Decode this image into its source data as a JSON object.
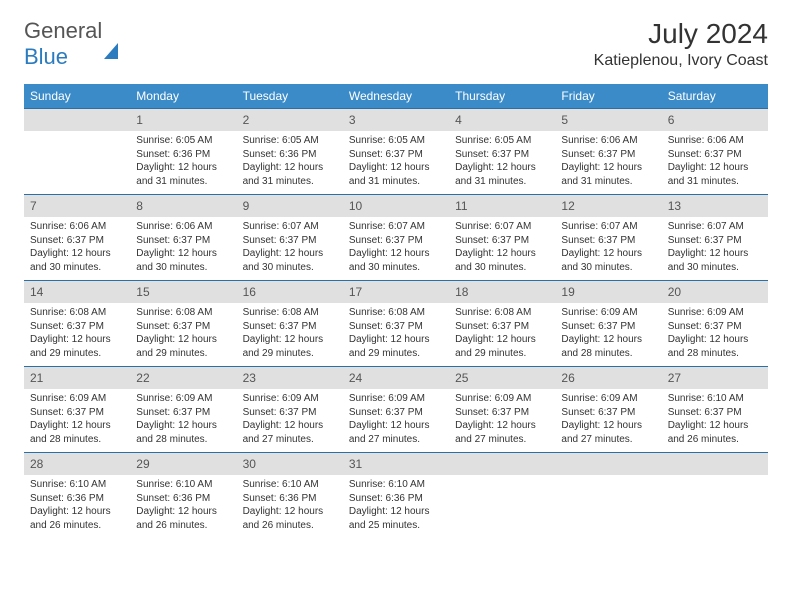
{
  "logo": {
    "text1": "General",
    "text2": "Blue"
  },
  "title": "July 2024",
  "location": "Katieplenou, Ivory Coast",
  "colors": {
    "header_bg": "#3b8bc9",
    "daynum_bg": "#e0e0e0",
    "border": "#2b6fa8",
    "text": "#333333"
  },
  "weekdays": [
    "Sunday",
    "Monday",
    "Tuesday",
    "Wednesday",
    "Thursday",
    "Friday",
    "Saturday"
  ],
  "first_weekday_index": 1,
  "days_in_month": 31,
  "days": {
    "1": {
      "sunrise": "6:05 AM",
      "sunset": "6:36 PM",
      "daylight": "12 hours and 31 minutes."
    },
    "2": {
      "sunrise": "6:05 AM",
      "sunset": "6:36 PM",
      "daylight": "12 hours and 31 minutes."
    },
    "3": {
      "sunrise": "6:05 AM",
      "sunset": "6:37 PM",
      "daylight": "12 hours and 31 minutes."
    },
    "4": {
      "sunrise": "6:05 AM",
      "sunset": "6:37 PM",
      "daylight": "12 hours and 31 minutes."
    },
    "5": {
      "sunrise": "6:06 AM",
      "sunset": "6:37 PM",
      "daylight": "12 hours and 31 minutes."
    },
    "6": {
      "sunrise": "6:06 AM",
      "sunset": "6:37 PM",
      "daylight": "12 hours and 31 minutes."
    },
    "7": {
      "sunrise": "6:06 AM",
      "sunset": "6:37 PM",
      "daylight": "12 hours and 30 minutes."
    },
    "8": {
      "sunrise": "6:06 AM",
      "sunset": "6:37 PM",
      "daylight": "12 hours and 30 minutes."
    },
    "9": {
      "sunrise": "6:07 AM",
      "sunset": "6:37 PM",
      "daylight": "12 hours and 30 minutes."
    },
    "10": {
      "sunrise": "6:07 AM",
      "sunset": "6:37 PM",
      "daylight": "12 hours and 30 minutes."
    },
    "11": {
      "sunrise": "6:07 AM",
      "sunset": "6:37 PM",
      "daylight": "12 hours and 30 minutes."
    },
    "12": {
      "sunrise": "6:07 AM",
      "sunset": "6:37 PM",
      "daylight": "12 hours and 30 minutes."
    },
    "13": {
      "sunrise": "6:07 AM",
      "sunset": "6:37 PM",
      "daylight": "12 hours and 30 minutes."
    },
    "14": {
      "sunrise": "6:08 AM",
      "sunset": "6:37 PM",
      "daylight": "12 hours and 29 minutes."
    },
    "15": {
      "sunrise": "6:08 AM",
      "sunset": "6:37 PM",
      "daylight": "12 hours and 29 minutes."
    },
    "16": {
      "sunrise": "6:08 AM",
      "sunset": "6:37 PM",
      "daylight": "12 hours and 29 minutes."
    },
    "17": {
      "sunrise": "6:08 AM",
      "sunset": "6:37 PM",
      "daylight": "12 hours and 29 minutes."
    },
    "18": {
      "sunrise": "6:08 AM",
      "sunset": "6:37 PM",
      "daylight": "12 hours and 29 minutes."
    },
    "19": {
      "sunrise": "6:09 AM",
      "sunset": "6:37 PM",
      "daylight": "12 hours and 28 minutes."
    },
    "20": {
      "sunrise": "6:09 AM",
      "sunset": "6:37 PM",
      "daylight": "12 hours and 28 minutes."
    },
    "21": {
      "sunrise": "6:09 AM",
      "sunset": "6:37 PM",
      "daylight": "12 hours and 28 minutes."
    },
    "22": {
      "sunrise": "6:09 AM",
      "sunset": "6:37 PM",
      "daylight": "12 hours and 28 minutes."
    },
    "23": {
      "sunrise": "6:09 AM",
      "sunset": "6:37 PM",
      "daylight": "12 hours and 27 minutes."
    },
    "24": {
      "sunrise": "6:09 AM",
      "sunset": "6:37 PM",
      "daylight": "12 hours and 27 minutes."
    },
    "25": {
      "sunrise": "6:09 AM",
      "sunset": "6:37 PM",
      "daylight": "12 hours and 27 minutes."
    },
    "26": {
      "sunrise": "6:09 AM",
      "sunset": "6:37 PM",
      "daylight": "12 hours and 27 minutes."
    },
    "27": {
      "sunrise": "6:10 AM",
      "sunset": "6:37 PM",
      "daylight": "12 hours and 26 minutes."
    },
    "28": {
      "sunrise": "6:10 AM",
      "sunset": "6:36 PM",
      "daylight": "12 hours and 26 minutes."
    },
    "29": {
      "sunrise": "6:10 AM",
      "sunset": "6:36 PM",
      "daylight": "12 hours and 26 minutes."
    },
    "30": {
      "sunrise": "6:10 AM",
      "sunset": "6:36 PM",
      "daylight": "12 hours and 26 minutes."
    },
    "31": {
      "sunrise": "6:10 AM",
      "sunset": "6:36 PM",
      "daylight": "12 hours and 25 minutes."
    }
  },
  "labels": {
    "sunrise": "Sunrise:",
    "sunset": "Sunset:",
    "daylight": "Daylight:"
  }
}
